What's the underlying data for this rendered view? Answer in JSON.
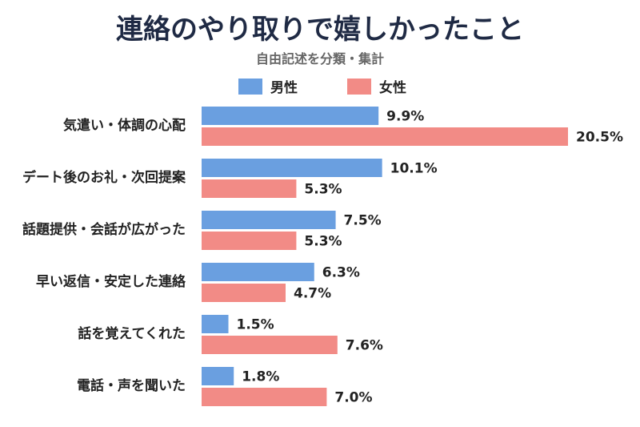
{
  "chart_data": {
    "type": "bar",
    "orientation": "horizontal",
    "title": "連絡のやり取りで嬉しかったこと",
    "subtitle": "自由記述を分類・集計",
    "categories": [
      "気遣い・体調の心配",
      "デート後のお礼・次回提案",
      "話題提供・会話が広がった",
      "早い返信・安定した連絡",
      "話を覚えてくれた",
      "電話・声を聞いた"
    ],
    "series": [
      {
        "name": "男性",
        "color": "#6a9fe0",
        "values": [
          9.9,
          10.1,
          7.5,
          6.3,
          1.5,
          1.8
        ],
        "labels": [
          "9.9%",
          "10.1%",
          "7.5%",
          "6.3%",
          "1.5%",
          "1.8%"
        ]
      },
      {
        "name": "女性",
        "color": "#f28b86",
        "values": [
          20.5,
          5.3,
          5.3,
          4.7,
          7.6,
          7.0
        ],
        "labels": [
          "20.5%",
          "5.3%",
          "5.3%",
          "4.7%",
          "7.6%",
          "7.0%"
        ]
      }
    ],
    "xlim": [
      0,
      20.5
    ],
    "unit": "%",
    "grid": false,
    "legend_position": "top"
  }
}
